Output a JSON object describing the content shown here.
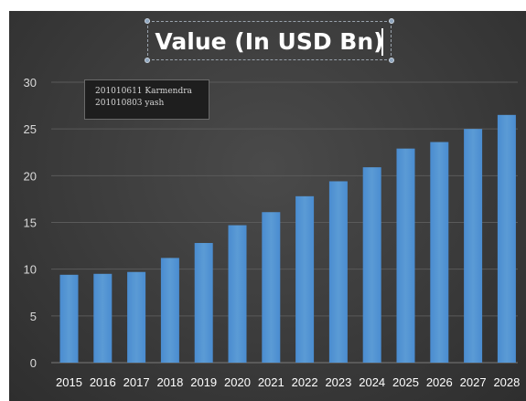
{
  "chart_data": {
    "type": "bar",
    "title": "Value (In USD Bn)",
    "xlabel": "",
    "ylabel": "",
    "categories": [
      "2015",
      "2016",
      "2017",
      "2018",
      "2019",
      "2020",
      "2021",
      "2022",
      "2023",
      "2024",
      "2025",
      "2026",
      "2027",
      "2028"
    ],
    "values": [
      9.4,
      9.5,
      9.7,
      11.2,
      12.8,
      14.7,
      16.1,
      17.8,
      19.4,
      20.9,
      22.9,
      23.6,
      25.0,
      26.5
    ],
    "ylim": [
      0,
      30
    ],
    "yticks": [
      "0",
      "5",
      "10",
      "15",
      "20",
      "25",
      "30"
    ],
    "grid": true,
    "bar_color": "#5b9bd5",
    "background_color": "#3d3d3d"
  },
  "annotation": {
    "line1": "201010611 Karmendra",
    "line2": "201010803 yash"
  }
}
